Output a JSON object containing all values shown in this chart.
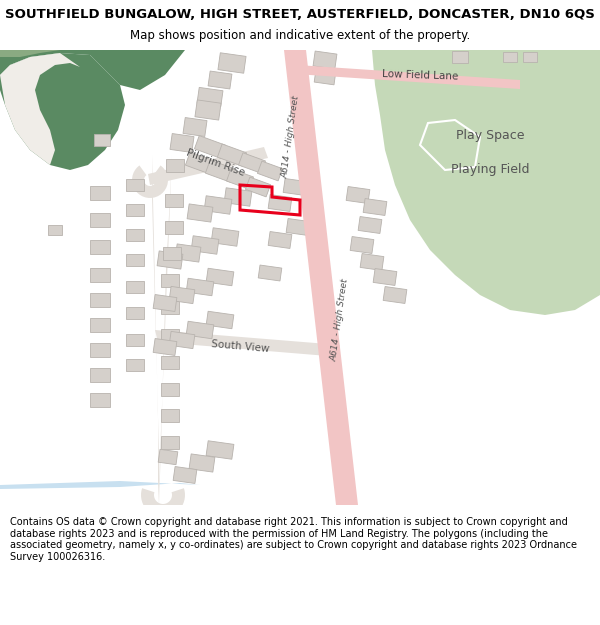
{
  "title": "SOUTHFIELD BUNGALOW, HIGH STREET, AUSTERFIELD, DONCASTER, DN10 6QS",
  "subtitle": "Map shows position and indicative extent of the property.",
  "footer": "Contains OS data © Crown copyright and database right 2021. This information is subject to Crown copyright and database rights 2023 and is reproduced with the permission of HM Land Registry. The polygons (including the associated geometry, namely x, y co-ordinates) are subject to Crown copyright and database rights 2023 Ordnance Survey 100026316.",
  "bg_color": "#ffffff",
  "map_bg": "#f0ede8",
  "road_color": "#f2c5c5",
  "green_dark": "#5a8a62",
  "green_dark2": "#6e9e6e",
  "green_light": "#c5d9b8",
  "building_color": "#d5d0cb",
  "building_edge": "#b8b3ae",
  "highlight_color": "#e8001c",
  "road_label": "A614 - High Street",
  "lane_label": "Low Field Lane",
  "pilgrim_label": "Pilgrim Rise",
  "south_view_label": "South View",
  "play_space_label": "Play Space",
  "playing_field_label": "Playing Field",
  "title_fontsize": 9.5,
  "subtitle_fontsize": 8.5,
  "footer_fontsize": 7.0
}
